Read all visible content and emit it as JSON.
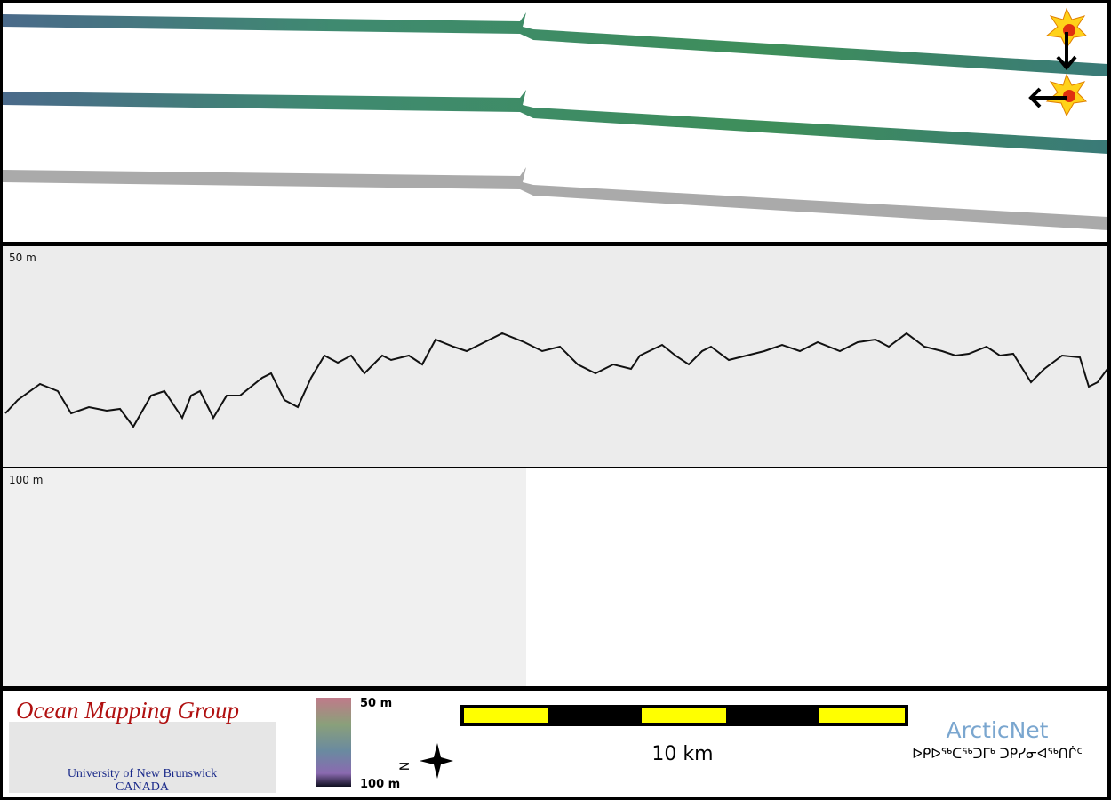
{
  "profile_top": {
    "depth_label": "50 m"
  },
  "profile_bottom": {
    "depth_label": "100 m"
  },
  "footer": {
    "logo": {
      "title": "Ocean Mapping Group",
      "university": "University of New Brunswick",
      "country": "CANADA"
    },
    "colorbar": {
      "top": "50 m",
      "bottom": "100 m"
    },
    "north": "N",
    "scale": "10 km",
    "arcticnet": {
      "name": "ArcticNet",
      "syllabics": "ᐅᑭᐅᖅᑕᖅᑐᒥᒃ ᑐᑭᓯᓂᐊᖅᑎᒌᑦ"
    }
  }
}
